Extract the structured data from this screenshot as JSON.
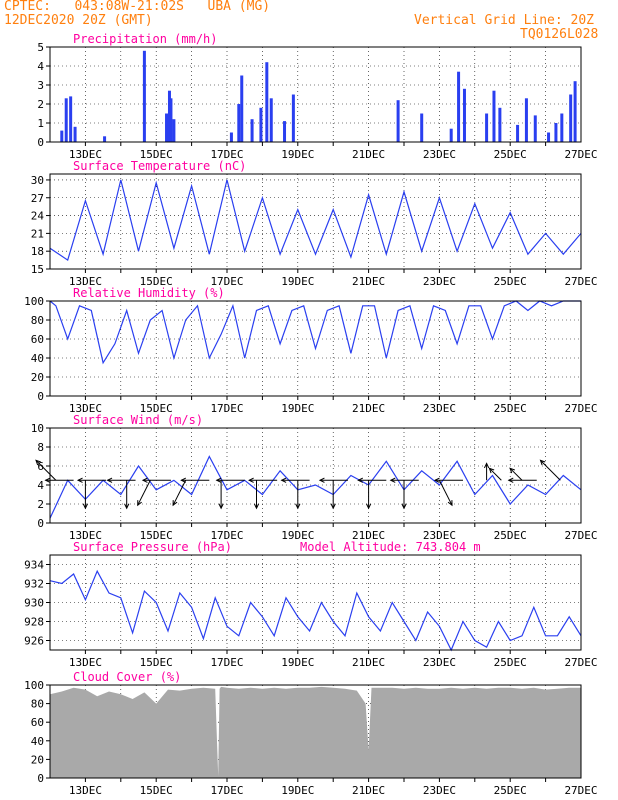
{
  "header": {
    "line1_left": "CPTEC:   043:08W-21:02S   UBA (MG)",
    "line2_left": "12DEC2020 20Z (GMT)",
    "line2_right": "Vertical Grid Line: 20Z",
    "line3_right": "TQ0126L028"
  },
  "colors": {
    "header": "#ff7f0e",
    "title": "#ff00a0",
    "line": "#2a3ff0",
    "bar": "#2a3ff0",
    "cloud": "#a9a9a9",
    "arrow": "#000000"
  },
  "x_axis": {
    "start": "2020-12-12T20:00Z",
    "end": "2020-12-27T20:00Z",
    "tick_labels": [
      "13DEC",
      "15DEC",
      "17DEC",
      "19DEC",
      "21DEC",
      "23DEC",
      "25DEC",
      "27DEC"
    ]
  },
  "panels": [
    {
      "key": "precip",
      "title": "Precipitation (mm/h)",
      "type": "bar",
      "ylim": [
        0,
        5
      ],
      "yticks": [
        "0",
        "1",
        "2",
        "3",
        "4",
        "5"
      ]
    },
    {
      "key": "temp",
      "title": "Surface Temperature (nC)",
      "type": "line",
      "ylim": [
        15,
        31
      ],
      "yticks": [
        "15",
        "18",
        "21",
        "24",
        "27",
        "30"
      ]
    },
    {
      "key": "rh",
      "title": "Relative Humidity (%)",
      "type": "line",
      "ylim": [
        0,
        100
      ],
      "yticks": [
        "0",
        "20",
        "40",
        "60",
        "80",
        "100"
      ]
    },
    {
      "key": "wind",
      "title": "Surface Wind (m/s)",
      "type": "line",
      "ylim": [
        0,
        10
      ],
      "yticks": [
        "0",
        "2",
        "4",
        "6",
        "8",
        "10"
      ]
    },
    {
      "key": "pres",
      "title": "Surface Pressure (hPa)",
      "extra_title": "Model Altitude: 743.804 m",
      "type": "line",
      "ylim": [
        925,
        935
      ],
      "yticks": [
        "926",
        "928",
        "930",
        "932",
        "934"
      ]
    },
    {
      "key": "cloud",
      "title": "Cloud Cover (%)",
      "type": "area",
      "ylim": [
        0,
        100
      ],
      "yticks": [
        "0",
        "20",
        "40",
        "60",
        "80",
        "100"
      ]
    }
  ],
  "chart_data": [
    {
      "type": "bar",
      "title": "Precipitation (mm/h)",
      "ylim": [
        0,
        5
      ],
      "x": [
        "2020-12-13T04Z",
        "2020-12-13T07Z",
        "2020-12-13T10Z",
        "2020-12-13T13Z",
        "2020-12-14T09Z",
        "2020-12-15T12Z",
        "2020-12-16T03Z",
        "2020-12-16T05Z",
        "2020-12-16T06Z",
        "2020-12-16T08Z",
        "2020-12-17T23Z",
        "2020-12-18T04Z",
        "2020-12-18T06Z",
        "2020-12-18T13Z",
        "2020-12-18T19Z",
        "2020-12-18T23Z",
        "2020-12-19T02Z",
        "2020-12-19T11Z",
        "2020-12-19T17Z",
        "2020-12-22T16Z",
        "2020-12-23T08Z",
        "2020-12-24T04Z",
        "2020-12-24T09Z",
        "2020-12-24T13Z",
        "2020-12-25T04Z",
        "2020-12-25T09Z",
        "2020-12-25T13Z",
        "2020-12-26T01Z",
        "2020-12-26T07Z",
        "2020-12-26T13Z",
        "2020-12-26T22Z",
        "2020-12-27T03Z",
        "2020-12-27T07Z",
        "2020-12-27T13Z",
        "2020-12-27T16Z"
      ],
      "y": [
        0.6,
        2.3,
        2.4,
        0.8,
        0.3,
        4.8,
        1.5,
        2.7,
        2.3,
        1.2,
        0.5,
        2.0,
        3.5,
        1.2,
        1.8,
        4.2,
        2.3,
        1.1,
        2.5,
        2.2,
        1.5,
        0.7,
        3.7,
        2.8,
        1.5,
        2.7,
        1.8,
        0.9,
        2.3,
        1.4,
        0.5,
        1.0,
        1.5,
        2.5,
        3.2
      ]
    },
    {
      "type": "line",
      "title": "Surface Temperature (nC)",
      "ylim": [
        15,
        31
      ],
      "x": [
        "2020-12-12T20Z",
        "2020-12-13T08Z",
        "2020-12-13T20Z",
        "2020-12-14T08Z",
        "2020-12-14T20Z",
        "2020-12-15T08Z",
        "2020-12-15T20Z",
        "2020-12-16T08Z",
        "2020-12-16T20Z",
        "2020-12-17T08Z",
        "2020-12-17T20Z",
        "2020-12-18T08Z",
        "2020-12-18T20Z",
        "2020-12-19T08Z",
        "2020-12-19T20Z",
        "2020-12-20T08Z",
        "2020-12-20T20Z",
        "2020-12-21T08Z",
        "2020-12-21T20Z",
        "2020-12-22T08Z",
        "2020-12-22T20Z",
        "2020-12-23T08Z",
        "2020-12-23T20Z",
        "2020-12-24T08Z",
        "2020-12-24T20Z",
        "2020-12-25T08Z",
        "2020-12-25T20Z",
        "2020-12-26T08Z",
        "2020-12-26T20Z",
        "2020-12-27T08Z",
        "2020-12-27T20Z"
      ],
      "y": [
        18.5,
        16.5,
        26.5,
        17.5,
        30.0,
        18.0,
        29.5,
        18.5,
        29.0,
        17.5,
        30.0,
        18.0,
        27.0,
        17.5,
        25.0,
        17.5,
        25.0,
        17.0,
        27.5,
        17.5,
        28.0,
        18.0,
        27.0,
        18.0,
        26.0,
        18.5,
        24.5,
        17.5,
        21.0,
        17.5,
        21.0
      ]
    },
    {
      "type": "line",
      "title": "Relative Humidity (%)",
      "ylim": [
        0,
        100
      ],
      "x": [
        "2020-12-12T20Z",
        "2020-12-13T00Z",
        "2020-12-13T08Z",
        "2020-12-13T16Z",
        "2020-12-14T00Z",
        "2020-12-14T08Z",
        "2020-12-14T16Z",
        "2020-12-15T00Z",
        "2020-12-15T08Z",
        "2020-12-15T16Z",
        "2020-12-16T00Z",
        "2020-12-16T08Z",
        "2020-12-16T16Z",
        "2020-12-17T00Z",
        "2020-12-17T08Z",
        "2020-12-17T16Z",
        "2020-12-18T00Z",
        "2020-12-18T08Z",
        "2020-12-18T16Z",
        "2020-12-19T00Z",
        "2020-12-19T08Z",
        "2020-12-19T16Z",
        "2020-12-20T00Z",
        "2020-12-20T08Z",
        "2020-12-20T16Z",
        "2020-12-21T00Z",
        "2020-12-21T08Z",
        "2020-12-21T16Z",
        "2020-12-22T00Z",
        "2020-12-22T08Z",
        "2020-12-22T16Z",
        "2020-12-23T00Z",
        "2020-12-23T08Z",
        "2020-12-23T16Z",
        "2020-12-24T00Z",
        "2020-12-24T08Z",
        "2020-12-24T16Z",
        "2020-12-25T00Z",
        "2020-12-25T08Z",
        "2020-12-25T16Z",
        "2020-12-26T00Z",
        "2020-12-26T08Z",
        "2020-12-26T16Z",
        "2020-12-27T00Z",
        "2020-12-27T08Z",
        "2020-12-27T20Z"
      ],
      "y": [
        100,
        95,
        60,
        95,
        90,
        35,
        55,
        90,
        45,
        80,
        90,
        40,
        80,
        95,
        40,
        65,
        95,
        40,
        90,
        95,
        55,
        90,
        95,
        50,
        90,
        95,
        45,
        95,
        95,
        40,
        90,
        95,
        50,
        95,
        90,
        55,
        95,
        95,
        60,
        95,
        100,
        90,
        100,
        95,
        100,
        100
      ]
    },
    {
      "type": "line",
      "title": "Surface Wind (m/s)",
      "ylim": [
        0,
        10
      ],
      "x": [
        "2020-12-12T20Z",
        "2020-12-13T08Z",
        "2020-12-13T20Z",
        "2020-12-14T08Z",
        "2020-12-14T20Z",
        "2020-12-15T08Z",
        "2020-12-15T20Z",
        "2020-12-16T08Z",
        "2020-12-16T20Z",
        "2020-12-17T08Z",
        "2020-12-17T20Z",
        "2020-12-18T08Z",
        "2020-12-18T20Z",
        "2020-12-19T08Z",
        "2020-12-19T20Z",
        "2020-12-20T08Z",
        "2020-12-20T20Z",
        "2020-12-21T08Z",
        "2020-12-21T20Z",
        "2020-12-22T08Z",
        "2020-12-22T20Z",
        "2020-12-23T08Z",
        "2020-12-23T20Z",
        "2020-12-24T08Z",
        "2020-12-24T20Z",
        "2020-12-25T08Z",
        "2020-12-25T20Z",
        "2020-12-26T08Z",
        "2020-12-26T20Z",
        "2020-12-27T08Z",
        "2020-12-27T20Z"
      ],
      "y": [
        0.5,
        4.5,
        2.5,
        4.5,
        3.0,
        6.0,
        3.5,
        4.5,
        3.0,
        7.0,
        3.5,
        4.5,
        3.0,
        5.5,
        3.5,
        4.0,
        3.0,
        5.0,
        4.0,
        6.5,
        3.5,
        5.5,
        4.0,
        6.5,
        3.0,
        5.0,
        2.0,
        4.0,
        3.0,
        5.0,
        3.5
      ],
      "arrows": [
        {
          "x": "2020-12-13T00Z",
          "dir": "upleft",
          "len": 1.0
        },
        {
          "x": "2020-12-13T12Z",
          "dir": "left",
          "len": 1.0
        },
        {
          "x": "2020-12-13T20Z",
          "dir": "down",
          "len": 1.0
        },
        {
          "x": "2020-12-14T10Z",
          "dir": "left",
          "len": 1.0
        },
        {
          "x": "2020-12-15T00Z",
          "dir": "down",
          "len": 1.0
        },
        {
          "x": "2020-12-15T06Z",
          "dir": "left",
          "len": 1.0
        },
        {
          "x": "2020-12-15T16Z",
          "dir": "downleft",
          "len": 1.0
        },
        {
          "x": "2020-12-16T06Z",
          "dir": "left",
          "len": 1.0
        },
        {
          "x": "2020-12-16T16Z",
          "dir": "downleft",
          "len": 1.0
        },
        {
          "x": "2020-12-17T08Z",
          "dir": "left",
          "len": 1.0
        },
        {
          "x": "2020-12-17T16Z",
          "dir": "down",
          "len": 1.0
        },
        {
          "x": "2020-12-18T08Z",
          "dir": "left",
          "len": 1.0
        },
        {
          "x": "2020-12-18T16Z",
          "dir": "down",
          "len": 1.0
        },
        {
          "x": "2020-12-19T06Z",
          "dir": "left",
          "len": 1.0
        },
        {
          "x": "2020-12-19T20Z",
          "dir": "down",
          "len": 1.0
        },
        {
          "x": "2020-12-20T04Z",
          "dir": "left",
          "len": 1.0
        },
        {
          "x": "2020-12-20T20Z",
          "dir": "down",
          "len": 1.0
        },
        {
          "x": "2020-12-21T06Z",
          "dir": "left",
          "len": 1.0
        },
        {
          "x": "2020-12-21T20Z",
          "dir": "down",
          "len": 1.0
        },
        {
          "x": "2020-12-22T08Z",
          "dir": "left",
          "len": 1.0
        },
        {
          "x": "2020-12-22T20Z",
          "dir": "down",
          "len": 1.0
        },
        {
          "x": "2020-12-23T06Z",
          "dir": "left",
          "len": 1.0
        },
        {
          "x": "2020-12-23T20Z",
          "dir": "downright",
          "len": 1.0
        },
        {
          "x": "2020-12-24T12Z",
          "dir": "left",
          "len": 1.0
        },
        {
          "x": "2020-12-25T04Z",
          "dir": "up",
          "len": 0.6
        },
        {
          "x": "2020-12-25T14Z",
          "dir": "upleft",
          "len": 0.6
        },
        {
          "x": "2020-12-26T04Z",
          "dir": "upleft",
          "len": 0.6
        },
        {
          "x": "2020-12-26T14Z",
          "dir": "left",
          "len": 1.0
        },
        {
          "x": "2020-12-27T06Z",
          "dir": "upleft",
          "len": 1.0
        }
      ]
    },
    {
      "type": "line",
      "title": "Surface Pressure (hPa)",
      "ylim": [
        925,
        935
      ],
      "x": [
        "2020-12-12T20Z",
        "2020-12-13T04Z",
        "2020-12-13T12Z",
        "2020-12-13T20Z",
        "2020-12-14T04Z",
        "2020-12-14T12Z",
        "2020-12-14T20Z",
        "2020-12-15T04Z",
        "2020-12-15T12Z",
        "2020-12-15T20Z",
        "2020-12-16T04Z",
        "2020-12-16T12Z",
        "2020-12-16T20Z",
        "2020-12-17T04Z",
        "2020-12-17T12Z",
        "2020-12-17T20Z",
        "2020-12-18T04Z",
        "2020-12-18T12Z",
        "2020-12-18T20Z",
        "2020-12-19T04Z",
        "2020-12-19T12Z",
        "2020-12-19T20Z",
        "2020-12-20T04Z",
        "2020-12-20T12Z",
        "2020-12-20T20Z",
        "2020-12-21T04Z",
        "2020-12-21T12Z",
        "2020-12-21T20Z",
        "2020-12-22T04Z",
        "2020-12-22T12Z",
        "2020-12-22T20Z",
        "2020-12-23T04Z",
        "2020-12-23T12Z",
        "2020-12-23T20Z",
        "2020-12-24T04Z",
        "2020-12-24T12Z",
        "2020-12-24T20Z",
        "2020-12-25T04Z",
        "2020-12-25T12Z",
        "2020-12-25T20Z",
        "2020-12-26T04Z",
        "2020-12-26T12Z",
        "2020-12-26T20Z",
        "2020-12-27T04Z",
        "2020-12-27T12Z",
        "2020-12-27T20Z"
      ],
      "y": [
        932.3,
        932.0,
        933.0,
        930.3,
        933.3,
        931.0,
        930.5,
        926.8,
        931.2,
        930.0,
        927.0,
        931.0,
        929.5,
        926.2,
        930.5,
        927.5,
        926.5,
        930.0,
        928.5,
        926.5,
        930.5,
        928.5,
        927.0,
        930.0,
        928.0,
        926.5,
        931.0,
        928.5,
        927.0,
        930.0,
        928.0,
        926.0,
        929.0,
        927.5,
        925.0,
        928.0,
        926.0,
        925.3,
        928.0,
        926.0,
        926.5,
        929.5,
        926.5,
        926.5,
        928.5,
        926.5
      ]
    },
    {
      "type": "area",
      "title": "Cloud Cover (%)",
      "ylim": [
        0,
        100
      ],
      "x": [
        "2020-12-12T20Z",
        "2020-12-13T04Z",
        "2020-12-13T12Z",
        "2020-12-13T20Z",
        "2020-12-14T04Z",
        "2020-12-14T12Z",
        "2020-12-14T20Z",
        "2020-12-15T04Z",
        "2020-12-15T12Z",
        "2020-12-15T20Z",
        "2020-12-16T04Z",
        "2020-12-16T12Z",
        "2020-12-16T20Z",
        "2020-12-17T04Z",
        "2020-12-17T12Z",
        "2020-12-17T14Z",
        "2020-12-17T15Z",
        "2020-12-17T16Z",
        "2020-12-17T20Z",
        "2020-12-18T04Z",
        "2020-12-18T12Z",
        "2020-12-18T20Z",
        "2020-12-19T04Z",
        "2020-12-19T12Z",
        "2020-12-19T20Z",
        "2020-12-20T04Z",
        "2020-12-20T12Z",
        "2020-12-20T20Z",
        "2020-12-21T04Z",
        "2020-12-21T12Z",
        "2020-12-21T18Z",
        "2020-12-21T20Z",
        "2020-12-21T22Z",
        "2020-12-22T04Z",
        "2020-12-22T12Z",
        "2020-12-22T20Z",
        "2020-12-23T04Z",
        "2020-12-23T12Z",
        "2020-12-23T20Z",
        "2020-12-24T04Z",
        "2020-12-24T12Z",
        "2020-12-24T20Z",
        "2020-12-25T04Z",
        "2020-12-25T12Z",
        "2020-12-25T20Z",
        "2020-12-26T04Z",
        "2020-12-26T12Z",
        "2020-12-26T20Z",
        "2020-12-27T04Z",
        "2020-12-27T12Z",
        "2020-12-27T20Z"
      ],
      "y": [
        90,
        93,
        97,
        95,
        88,
        93,
        90,
        85,
        92,
        80,
        95,
        94,
        96,
        97,
        96,
        2,
        96,
        98,
        97,
        96,
        97,
        96,
        97,
        96,
        97,
        97,
        98,
        97,
        96,
        94,
        80,
        30,
        97,
        97,
        97,
        96,
        97,
        96,
        96,
        97,
        96,
        97,
        96,
        97,
        97,
        96,
        97,
        95,
        96,
        97,
        97
      ]
    }
  ]
}
